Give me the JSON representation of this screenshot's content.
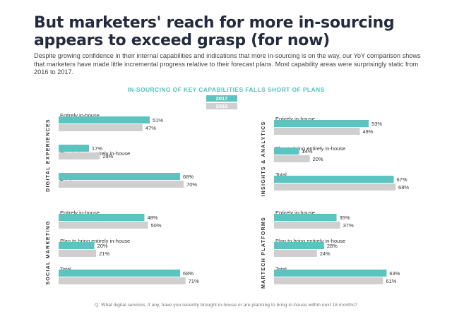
{
  "header": {
    "title": "But marketers' reach for more in-sourcing appears to exceed grasp (for now)",
    "description": "Despite growing confidence in their internal capabilities and indications that more in-sourcing is on the way, our YoY comparison shows that marketers have made little incremental progress relative to their forecast plans. Most capability areas were surprisingly static from 2016 to 2017."
  },
  "chart_data": {
    "type": "bar",
    "title": "IN-SOURCING OF KEY CAPABILITIES FALLS SHORT OF PLANS",
    "orientation": "horizontal",
    "unit": "%",
    "xlim": [
      0,
      100
    ],
    "legend": [
      {
        "name": "2017",
        "color": "#5cc4c0"
      },
      {
        "name": "2016",
        "color": "#cfcfcf"
      }
    ],
    "panels": [
      {
        "name": "DIGITAL EXPERIENCES",
        "groups": [
          {
            "label": "Entirely in-house",
            "values": {
              "2017": 51,
              "2016": 47
            }
          },
          {
            "label": "Plan to bring entirely in-house",
            "values": {
              "2017": 17,
              "2016": 23
            }
          },
          {
            "label": "Total",
            "values": {
              "2017": 68,
              "2016": 70
            }
          }
        ]
      },
      {
        "name": "INSIGHTS & ANALYTICS",
        "groups": [
          {
            "label": "Entirely in-house",
            "values": {
              "2017": 53,
              "2016": 48
            }
          },
          {
            "label": "Plan to bring entirely in-house",
            "values": {
              "2017": 14,
              "2016": 20
            }
          },
          {
            "label": "Total",
            "values": {
              "2017": 67,
              "2016": 68
            }
          }
        ]
      },
      {
        "name": "SOCIAL MARKETING",
        "groups": [
          {
            "label": "Entirely in-house",
            "values": {
              "2017": 48,
              "2016": 50
            }
          },
          {
            "label": "Plan to bring entirely in-house",
            "values": {
              "2017": 20,
              "2016": 21
            }
          },
          {
            "label": "Total",
            "values": {
              "2017": 68,
              "2016": 71
            }
          }
        ]
      },
      {
        "name": "MARTECH PLATFORMS",
        "groups": [
          {
            "label": "Entirely in-house",
            "values": {
              "2017": 35,
              "2016": 37
            }
          },
          {
            "label": "Plan to bring entirely in-house",
            "values": {
              "2017": 28,
              "2016": 24
            }
          },
          {
            "label": "Total",
            "values": {
              "2017": 63,
              "2016": 61
            }
          }
        ]
      }
    ]
  },
  "footnote": "Q: What digital services, if any, have you recently brought in-house or are planning to bring in-house within next 18 months?"
}
